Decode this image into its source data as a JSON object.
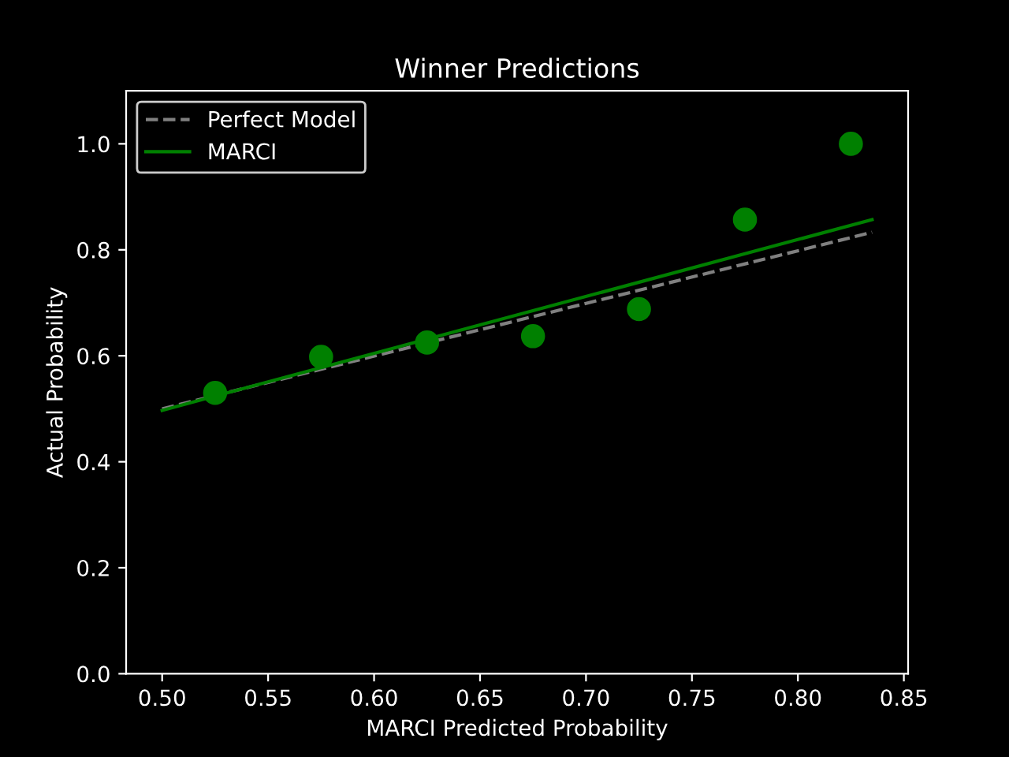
{
  "chart_data": {
    "type": "scatter",
    "title": "Winner Predictions",
    "xlabel": "MARCI Predicted Probability",
    "ylabel": "Actual Probability",
    "xlim": [
      0.483,
      0.852
    ],
    "xticks": [
      {
        "value": 0.5,
        "label": "0.50"
      },
      {
        "value": 0.55,
        "label": "0.55"
      },
      {
        "value": 0.6,
        "label": "0.60"
      },
      {
        "value": 0.65,
        "label": "0.65"
      },
      {
        "value": 0.7,
        "label": "0.70"
      },
      {
        "value": 0.75,
        "label": "0.75"
      },
      {
        "value": 0.8,
        "label": "0.80"
      },
      {
        "value": 0.85,
        "label": "0.85"
      }
    ],
    "ylim": [
      0,
      1.1
    ],
    "yticks": [
      {
        "value": 0,
        "label": "0.0"
      },
      {
        "value": 0.2,
        "label": "0.2"
      },
      {
        "value": 0.4,
        "label": "0.4"
      },
      {
        "value": 0.6,
        "label": "0.6"
      },
      {
        "value": 0.8,
        "label": "0.8"
      },
      {
        "value": 1.0,
        "label": "1.0"
      }
    ],
    "grid": false,
    "legend": "top left",
    "series": [
      {
        "name": "Perfect Model",
        "type": "line",
        "color": "#808080",
        "line_style": "dashed",
        "x": [
          0.5,
          0.835
        ],
        "values": [
          0.5,
          0.833
        ]
      },
      {
        "name": "MARCI",
        "type": "line",
        "color": "#008000",
        "line_style": "solid",
        "x": [
          0.5,
          0.835
        ],
        "values": [
          0.497,
          0.857
        ]
      },
      {
        "color": "#008000",
        "marker": "circle",
        "x": [
          0.525,
          0.575,
          0.625,
          0.675,
          0.725,
          0.775,
          0.825
        ],
        "values": [
          0.53,
          0.598,
          0.625,
          0.637,
          0.688,
          0.857,
          1.0
        ]
      }
    ]
  }
}
